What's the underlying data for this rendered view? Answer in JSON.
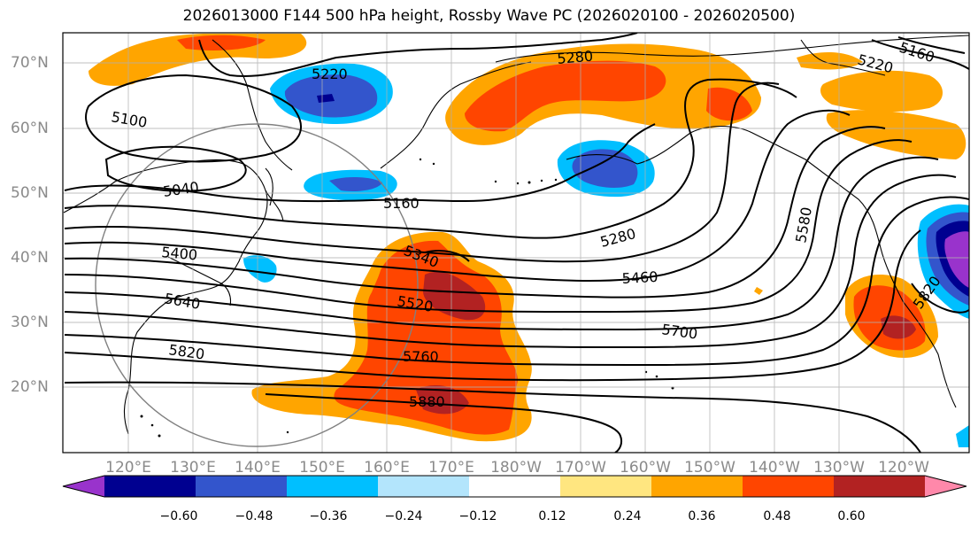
{
  "title": "2026013000 F144 500 hPa height, Rossby Wave PC (2026020100 - 2026020500)",
  "map": {
    "projection": "plate-carree",
    "lon_range_east": [
      110,
      250
    ],
    "lat_range": [
      10,
      75
    ],
    "gridlines": true,
    "lat_labels": [
      "70°N",
      "60°N",
      "50°N",
      "40°N",
      "30°N",
      "20°N"
    ],
    "lon_labels": [
      "120°E",
      "130°E",
      "140°E",
      "150°E",
      "160°E",
      "170°E",
      "180°W",
      "170°W",
      "160°W",
      "150°W",
      "140°W",
      "130°W",
      "120°W"
    ]
  },
  "height_contours": {
    "units": "m",
    "interval": 60,
    "labels": [
      "5220",
      "5280",
      "5100",
      "5040",
      "5160",
      "5160",
      "5220",
      "5280",
      "5400",
      "5340",
      "5460",
      "5520",
      "5580",
      "5640",
      "5700",
      "5760",
      "5820",
      "5820",
      "5880"
    ]
  },
  "anomaly_shading": {
    "colors": [
      "#9933cc",
      "#000090",
      "#3355cc",
      "#00bfff",
      "#b3e5fc",
      "#ffffff",
      "#ffe680",
      "#ffa500",
      "#ff4500",
      "#b22222",
      "#ff88aa"
    ],
    "levels": [
      -0.6,
      -0.48,
      -0.36,
      -0.24,
      -0.12,
      0.12,
      0.24,
      0.36,
      0.48,
      0.6
    ],
    "tick_labels": [
      "−0.60",
      "−0.48",
      "−0.36",
      "−0.24",
      "−0.12",
      "0.12",
      "0.24",
      "0.36",
      "0.48",
      "0.60"
    ]
  }
}
